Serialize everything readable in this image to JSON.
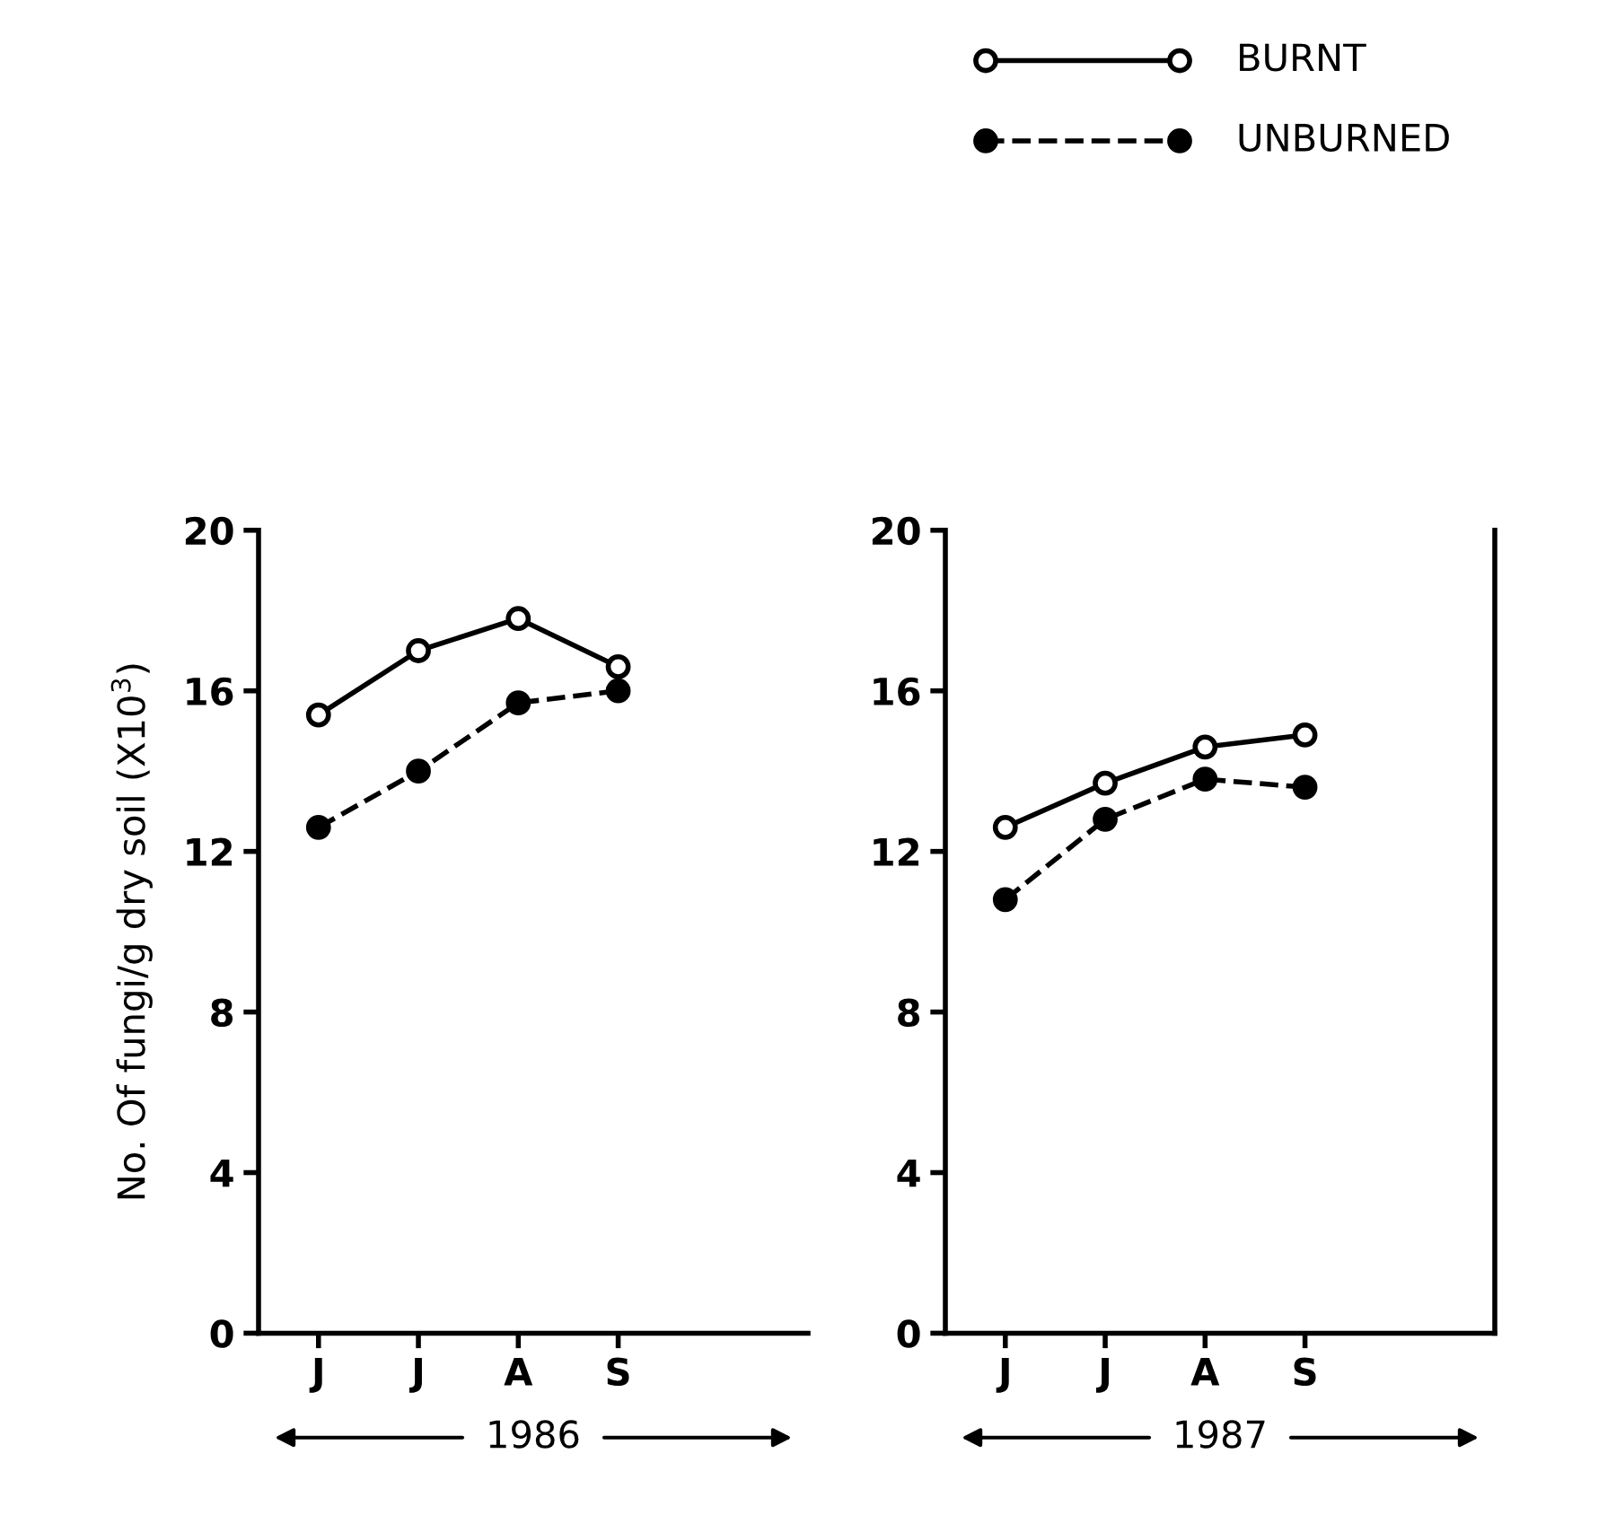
{
  "chart_data": [
    {
      "type": "line",
      "ylabel": "No. Of fungi/g dry soil (X10$^{3}$)",
      "categories": [
        "J",
        "J",
        "A",
        "S"
      ],
      "ylim": [
        0,
        20
      ],
      "yticks": [
        0,
        4,
        8,
        12,
        16,
        20
      ],
      "grid": false,
      "legend": "top right",
      "marker": "circle",
      "annotations": [
        "1986"
      ],
      "series": [
        {
          "name": "BURNT",
          "color": "#000000",
          "line_style": "solid",
          "values": [
            15.4,
            17.0,
            17.8,
            16.6
          ]
        },
        {
          "name": "UNBURNED",
          "color": "#000000",
          "line_style": "dashed",
          "values": [
            12.6,
            14.0,
            15.7,
            16.0
          ]
        }
      ]
    },
    {
      "type": "line",
      "categories": [
        "J",
        "J",
        "A",
        "S"
      ],
      "ylim": [
        0,
        20
      ],
      "yticks": [
        0,
        4,
        8,
        12,
        16,
        20
      ],
      "grid": false,
      "marker": "circle",
      "annotations": [
        "1987"
      ],
      "series": [
        {
          "color": "#000000",
          "line_style": "solid",
          "values": [
            12.6,
            13.7,
            14.6,
            14.9
          ]
        },
        {
          "color": "#000000",
          "line_style": "dashed",
          "values": [
            10.8,
            12.8,
            13.8,
            13.6
          ]
        }
      ]
    }
  ]
}
